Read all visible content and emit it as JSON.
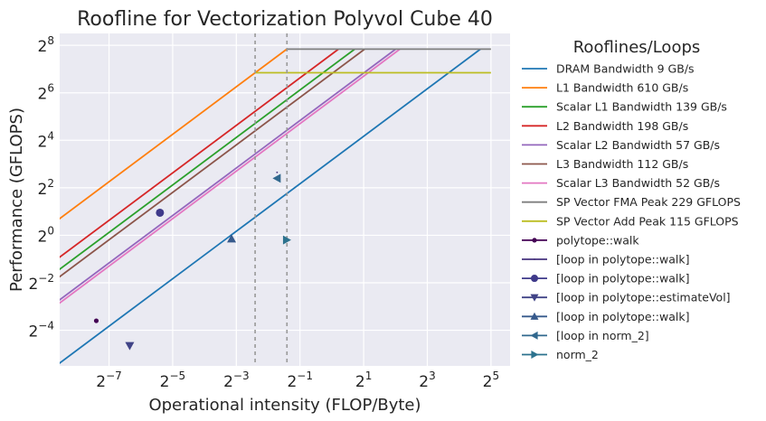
{
  "chart_data": {
    "type": "line",
    "title": "Roofline for Vectorization Polyvol Cube 40",
    "xlabel": "Operational intensity (FLOP/Byte)",
    "ylabel": "Performance (GFLOPS)",
    "xscale": "log2",
    "yscale": "log2",
    "xlim_log2": [
      -8.55,
      5.6
    ],
    "ylim_log2": [
      -5.5,
      8.5
    ],
    "grid": true,
    "x_ticks": [
      {
        "base": "2",
        "exp": "−7",
        "value_log2": -7
      },
      {
        "base": "2",
        "exp": "−5",
        "value_log2": -5
      },
      {
        "base": "2",
        "exp": "−3",
        "value_log2": -3
      },
      {
        "base": "2",
        "exp": "−1",
        "value_log2": -1
      },
      {
        "base": "2",
        "exp": "1",
        "value_log2": 1
      },
      {
        "base": "2",
        "exp": "3",
        "value_log2": 3
      },
      {
        "base": "2",
        "exp": "5",
        "value_log2": 5
      }
    ],
    "y_ticks": [
      {
        "base": "2",
        "exp": "−4",
        "value_log2": -4
      },
      {
        "base": "2",
        "exp": "−2",
        "value_log2": -2
      },
      {
        "base": "2",
        "exp": "0",
        "value_log2": 0
      },
      {
        "base": "2",
        "exp": "2",
        "value_log2": 2
      },
      {
        "base": "2",
        "exp": "4",
        "value_log2": 4
      },
      {
        "base": "2",
        "exp": "6",
        "value_log2": 6
      },
      {
        "base": "2",
        "exp": "8",
        "value_log2": 8
      }
    ],
    "legend": {
      "title": "Rooflines/Loops",
      "placement": "outside-right"
    },
    "bandwidth_roofs": [
      {
        "name": "DRAM Bandwidth 9 GB/s",
        "bandwidth_gbs": 9,
        "color": "#1f77b4"
      },
      {
        "name": "L1 Bandwidth 610 GB/s",
        "bandwidth_gbs": 610,
        "color": "#ff7f0e"
      },
      {
        "name": "Scalar L1 Bandwidth 139 GB/s",
        "bandwidth_gbs": 139,
        "color": "#2ca02c"
      },
      {
        "name": "L2 Bandwidth 198 GB/s",
        "bandwidth_gbs": 198,
        "color": "#d62728"
      },
      {
        "name": "Scalar L2 Bandwidth 57 GB/s",
        "bandwidth_gbs": 57,
        "color": "#9467bd"
      },
      {
        "name": "L3 Bandwidth 112 GB/s",
        "bandwidth_gbs": 112,
        "color": "#8c564b"
      },
      {
        "name": "Scalar L3 Bandwidth 52 GB/s",
        "bandwidth_gbs": 52,
        "color": "#e377c2"
      }
    ],
    "compute_roofs": [
      {
        "name": "SP Vector FMA Peak 229 GFLOPS",
        "gflops": 229,
        "color": "#7f7f7f"
      },
      {
        "name": "SP Vector Add Peak 115 GFLOPS",
        "gflops": 115,
        "color": "#bcbd22"
      }
    ],
    "ridge_lines": [
      {
        "x_log2": -2.41,
        "color": "#999999"
      },
      {
        "x_log2": -1.41,
        "color": "#999999"
      }
    ],
    "loops": [
      {
        "name": "polytope::walk",
        "marker": "dot",
        "color": "#440154",
        "x_log2": -7.4,
        "y_log2": -3.6
      },
      {
        "name": "[loop in polytope::walk]",
        "marker": "pixel",
        "color": "#46337e",
        "x_log2": -1.72,
        "y_log2": 2.65
      },
      {
        "name": "[loop in polytope::walk]",
        "marker": "circle",
        "color": "#3f3a8a",
        "x_log2": -5.4,
        "y_log2": 0.95
      },
      {
        "name": "[loop in polytope::estimateVol]",
        "marker": "triangle_down",
        "color": "#414487",
        "x_log2": -6.35,
        "y_log2": -4.65
      },
      {
        "name": "[loop in polytope::walk]",
        "marker": "triangle_up",
        "color": "#375a8c",
        "x_log2": -3.15,
        "y_log2": -0.15
      },
      {
        "name": "[loop in norm_2]",
        "marker": "triangle_left",
        "color": "#31688e",
        "x_log2": -1.72,
        "y_log2": 2.4
      },
      {
        "name": "norm_2",
        "marker": "triangle_right",
        "color": "#2c728e",
        "x_log2": -1.42,
        "y_log2": -0.2
      }
    ]
  }
}
